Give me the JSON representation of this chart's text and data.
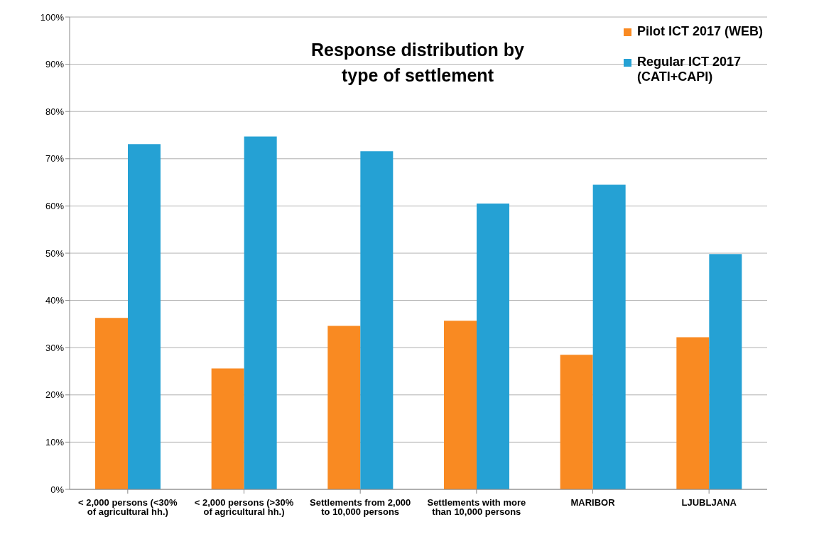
{
  "chart_data": {
    "type": "bar",
    "title": "Response distribution by type of settlement",
    "categories": [
      "< 2,000 persons (<30% of agricultural hh.)",
      "< 2,000 persons (>30% of agricultural hh.)",
      "Settlements  from 2,000 to 10,000 persons",
      "Settlements  with more than 10,000 persons",
      "MARIBOR",
      "LJUBLJANA"
    ],
    "series": [
      {
        "name": "Pilot ICT 2017 (WEB)",
        "color": "#f98a22",
        "values": [
          36.3,
          25.6,
          34.6,
          35.7,
          28.5,
          32.2
        ]
      },
      {
        "name": "Regular ICT 2017 (CATI+CAPI)",
        "color": "#25a1d4",
        "values": [
          73.1,
          74.7,
          71.6,
          60.5,
          64.5,
          49.8
        ]
      }
    ],
    "ylim": [
      0,
      100
    ],
    "yticks": [
      {
        "value": 0,
        "label": "0%"
      },
      {
        "value": 10,
        "label": "10%"
      },
      {
        "value": 20,
        "label": "20%"
      },
      {
        "value": 30,
        "label": "30%"
      },
      {
        "value": 40,
        "label": "40%"
      },
      {
        "value": 50,
        "label": "50%"
      },
      {
        "value": 60,
        "label": "60%"
      },
      {
        "value": 70,
        "label": "70%"
      },
      {
        "value": 80,
        "label": "80%"
      },
      {
        "value": 90,
        "label": "90%"
      },
      {
        "value": 100,
        "label": "100%"
      }
    ],
    "grid": "y",
    "legend": "top right"
  }
}
